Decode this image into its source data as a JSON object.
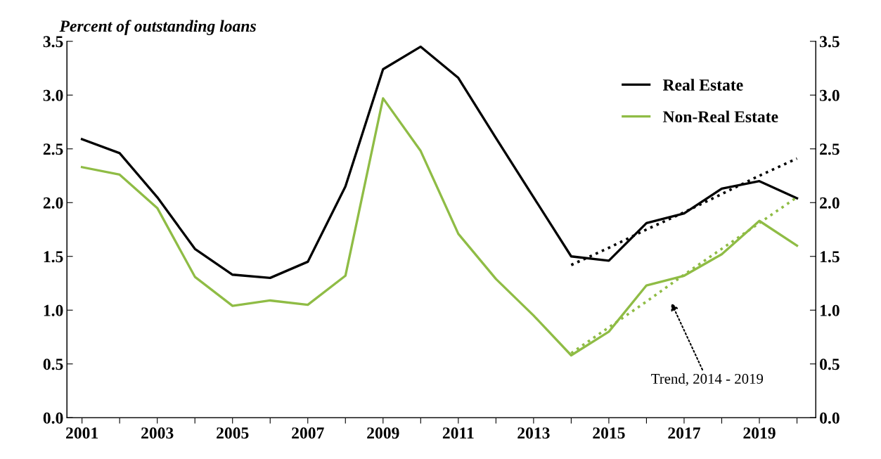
{
  "chart_data": {
    "type": "line",
    "title": "Percent of outstanding loans",
    "x": [
      2001,
      2002,
      2003,
      2004,
      2005,
      2006,
      2007,
      2008,
      2009,
      2010,
      2011,
      2012,
      2013,
      2014,
      2015,
      2016,
      2017,
      2018,
      2019,
      2020
    ],
    "series": [
      {
        "name": "Real Estate",
        "color": "#000000",
        "values": [
          2.59,
          2.46,
          2.05,
          1.57,
          1.33,
          1.3,
          1.45,
          2.15,
          3.24,
          3.45,
          3.16,
          2.6,
          2.05,
          1.5,
          1.46,
          1.81,
          1.9,
          2.13,
          2.2,
          2.04
        ]
      },
      {
        "name": "Non-Real Estate",
        "color": "#8fbc45",
        "values": [
          2.33,
          2.26,
          1.95,
          1.31,
          1.04,
          1.09,
          1.05,
          1.32,
          2.97,
          2.48,
          1.71,
          1.29,
          0.95,
          0.58,
          0.8,
          1.23,
          1.32,
          1.52,
          1.83,
          1.6
        ]
      },
      {
        "type": "line",
        "line_style": "dotted",
        "color": "#000000",
        "values": [
          null,
          null,
          null,
          null,
          null,
          null,
          null,
          null,
          null,
          null,
          null,
          null,
          null,
          1.42,
          1.58,
          1.75,
          1.91,
          2.08,
          2.25,
          2.41
        ]
      },
      {
        "type": "line",
        "line_style": "dotted",
        "color": "#8fbc45",
        "values": [
          null,
          null,
          null,
          null,
          null,
          null,
          null,
          null,
          null,
          null,
          null,
          null,
          null,
          0.6,
          0.84,
          1.08,
          1.33,
          1.57,
          1.81,
          2.05
        ]
      }
    ],
    "xlim": [
      2000.6,
      2020.5
    ],
    "xticks": [
      {
        "value": 2001,
        "label": "2001"
      },
      {
        "value": 2002,
        "label": null
      },
      {
        "value": 2003,
        "label": "2003"
      },
      {
        "value": 2004,
        "label": null
      },
      {
        "value": 2005,
        "label": "2005"
      },
      {
        "value": 2006,
        "label": null
      },
      {
        "value": 2007,
        "label": "2007"
      },
      {
        "value": 2008,
        "label": null
      },
      {
        "value": 2009,
        "label": "2009"
      },
      {
        "value": 2010,
        "label": null
      },
      {
        "value": 2011,
        "label": "2011"
      },
      {
        "value": 2012,
        "label": null
      },
      {
        "value": 2013,
        "label": "2013"
      },
      {
        "value": 2014,
        "label": null
      },
      {
        "value": 2015,
        "label": "2015"
      },
      {
        "value": 2016,
        "label": null
      },
      {
        "value": 2017,
        "label": "2017"
      },
      {
        "value": 2018,
        "label": null
      },
      {
        "value": 2019,
        "label": "2019"
      },
      {
        "value": 2020,
        "label": null
      }
    ],
    "ylim": [
      0,
      3.5
    ],
    "yticks": [
      {
        "value": 0,
        "label": "0.0"
      },
      {
        "value": 0.5,
        "label": "0.5"
      },
      {
        "value": 1,
        "label": "1.0"
      },
      {
        "value": 1.5,
        "label": "1.5"
      },
      {
        "value": 2,
        "label": "2.0"
      },
      {
        "value": 2.5,
        "label": "2.5"
      },
      {
        "value": 3,
        "label": "3.0"
      },
      {
        "value": 3.5,
        "label": "3.5"
      }
    ],
    "y2lim": [
      0,
      3.5
    ],
    "y2ticks": [
      {
        "value": 0,
        "label": "0.0"
      },
      {
        "value": 0.5,
        "label": "0.5"
      },
      {
        "value": 1,
        "label": "1.0"
      },
      {
        "value": 1.5,
        "label": "1.5"
      },
      {
        "value": 2,
        "label": "2.0"
      },
      {
        "value": 2.5,
        "label": "2.5"
      },
      {
        "value": 3,
        "label": "3.0"
      },
      {
        "value": 3.5,
        "label": "3.5"
      }
    ],
    "annotations": [
      "Trend, 2014 - 2019"
    ],
    "grid": false,
    "legend": "top right",
    "line_style": "solid",
    "marker": "none"
  }
}
